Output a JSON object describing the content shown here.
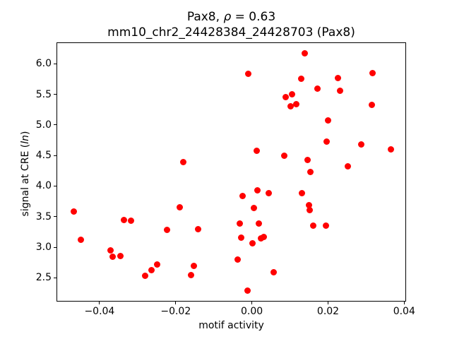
{
  "chart_data": {
    "type": "scatter",
    "title_prefix": "Pax8, ",
    "title_rho": "ρ",
    "title_suffix": " = 0.63",
    "subtitle": "mm10_chr2_24428384_24428703 (Pax8)",
    "xlabel": "motif activity",
    "ylabel_prefix": "signal at CRE (",
    "ylabel_italic": "ln",
    "ylabel_suffix": ")",
    "marker_color": "#ff0000",
    "frame_color": "#000000",
    "legend": "none",
    "grid": false,
    "xlim": [
      -0.0513,
      0.0405
    ],
    "ylim": [
      2.11,
      6.35
    ],
    "x_ticks": [
      {
        "v": -0.04,
        "label": "−0.04"
      },
      {
        "v": -0.02,
        "label": "−0.02"
      },
      {
        "v": 0.0,
        "label": "0.00"
      },
      {
        "v": 0.02,
        "label": "0.02"
      },
      {
        "v": 0.04,
        "label": "0.04"
      }
    ],
    "y_ticks": [
      {
        "v": 2.5,
        "label": "2.5"
      },
      {
        "v": 3.0,
        "label": "3.0"
      },
      {
        "v": 3.5,
        "label": "3.5"
      },
      {
        "v": 4.0,
        "label": "4.0"
      },
      {
        "v": 4.5,
        "label": "4.5"
      },
      {
        "v": 5.0,
        "label": "5.0"
      },
      {
        "v": 5.5,
        "label": "5.5"
      },
      {
        "v": 6.0,
        "label": "6.0"
      }
    ],
    "points": [
      [
        -0.047,
        3.59
      ],
      [
        -0.0451,
        3.13
      ],
      [
        -0.0373,
        2.96
      ],
      [
        -0.0367,
        2.85
      ],
      [
        -0.0347,
        2.87
      ],
      [
        -0.0338,
        3.46
      ],
      [
        -0.032,
        3.45
      ],
      [
        -0.0283,
        2.54
      ],
      [
        -0.0265,
        2.64
      ],
      [
        -0.025,
        2.73
      ],
      [
        -0.0224,
        3.3
      ],
      [
        -0.0192,
        3.66
      ],
      [
        -0.0182,
        4.4
      ],
      [
        -0.0161,
        2.55
      ],
      [
        -0.0155,
        2.7
      ],
      [
        -0.0143,
        3.31
      ],
      [
        -0.004,
        2.81
      ],
      [
        -0.0034,
        3.4
      ],
      [
        -0.003,
        3.17
      ],
      [
        -0.0027,
        3.85
      ],
      [
        -0.0014,
        2.3
      ],
      [
        -0.0011,
        5.85
      ],
      [
        0.0,
        3.08
      ],
      [
        0.0003,
        3.65
      ],
      [
        0.001,
        4.59
      ],
      [
        0.0012,
        3.94
      ],
      [
        0.0017,
        3.4
      ],
      [
        0.0022,
        3.16
      ],
      [
        0.003,
        3.18
      ],
      [
        0.0043,
        3.89
      ],
      [
        0.0056,
        2.6
      ],
      [
        0.0083,
        4.51
      ],
      [
        0.0086,
        5.47
      ],
      [
        0.01,
        5.32
      ],
      [
        0.0104,
        5.51
      ],
      [
        0.0114,
        5.35
      ],
      [
        0.0127,
        5.77
      ],
      [
        0.013,
        3.9
      ],
      [
        0.0136,
        6.18
      ],
      [
        0.0145,
        4.44
      ],
      [
        0.0148,
        3.7
      ],
      [
        0.0149,
        3.62
      ],
      [
        0.0151,
        4.24
      ],
      [
        0.0159,
        3.36
      ],
      [
        0.0171,
        5.61
      ],
      [
        0.0193,
        3.36
      ],
      [
        0.0195,
        4.74
      ],
      [
        0.0198,
        5.08
      ],
      [
        0.0225,
        5.78
      ],
      [
        0.023,
        5.57
      ],
      [
        0.025,
        4.34
      ],
      [
        0.0286,
        4.69
      ],
      [
        0.0313,
        5.34
      ],
      [
        0.0315,
        5.86
      ],
      [
        0.0363,
        4.61
      ]
    ]
  }
}
